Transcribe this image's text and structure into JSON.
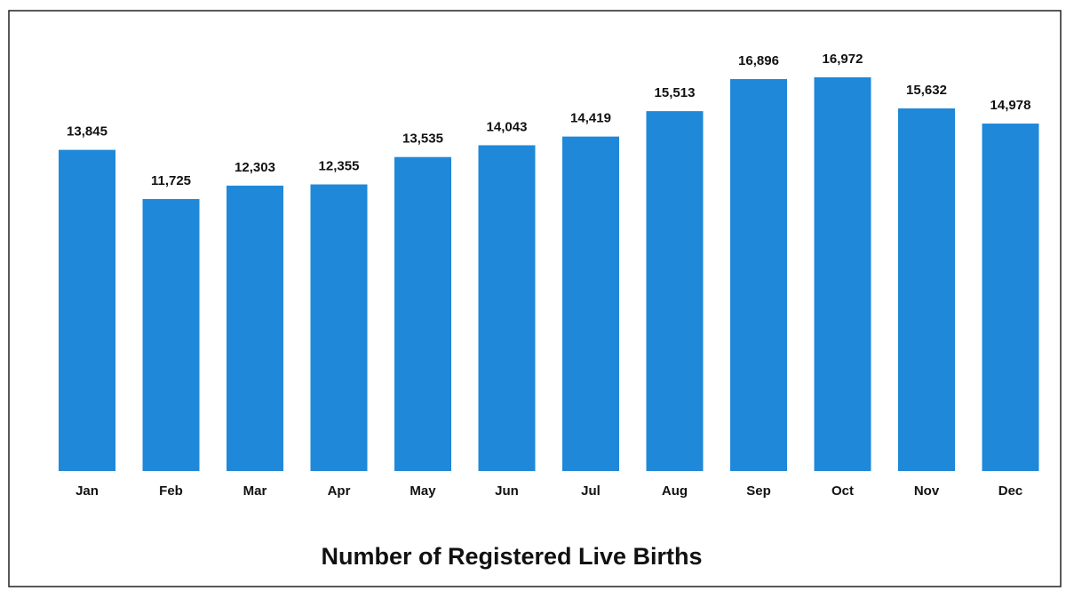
{
  "chart_data": {
    "type": "bar",
    "title": "Number of Registered Live Births",
    "categories": [
      "Jan",
      "Feb",
      "Mar",
      "Apr",
      "May",
      "Jun",
      "Jul",
      "Aug",
      "Sep",
      "Oct",
      "Nov",
      "Dec"
    ],
    "values": [
      13845,
      11725,
      12303,
      12355,
      13535,
      14043,
      14419,
      15513,
      16896,
      16972,
      15632,
      14978
    ],
    "value_labels": [
      "13,845",
      "11,725",
      "12,303",
      "12,355",
      "13,535",
      "14,043",
      "14,419",
      "15,513",
      "16,896",
      "16,972",
      "15,632",
      "14,978"
    ],
    "color": "#1f88d9"
  }
}
